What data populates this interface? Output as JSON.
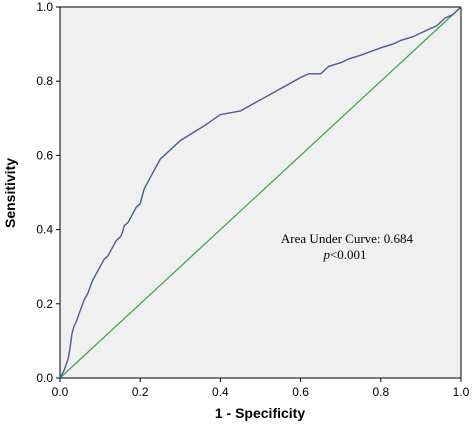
{
  "chart_data": {
    "type": "line",
    "title": "",
    "xlabel": "1 - Specificity",
    "ylabel": "Sensitivity",
    "xlim": [
      0.0,
      1.0
    ],
    "ylim": [
      0.0,
      1.0
    ],
    "x_ticks": [
      "0.0",
      "0.2",
      "0.4",
      "0.6",
      "0.8",
      "1.0"
    ],
    "y_ticks": [
      "0.0",
      "0.2",
      "0.4",
      "0.6",
      "0.8",
      "1.0"
    ],
    "grid": false,
    "plot_background": "#f0f0f0",
    "series": [
      {
        "color": "#4a5a9c",
        "x": [
          0.0,
          0.01,
          0.02,
          0.025,
          0.03,
          0.035,
          0.04,
          0.05,
          0.06,
          0.07,
          0.08,
          0.09,
          0.095,
          0.1,
          0.11,
          0.12,
          0.13,
          0.14,
          0.15,
          0.155,
          0.16,
          0.17,
          0.18,
          0.19,
          0.2,
          0.205,
          0.21,
          0.22,
          0.23,
          0.24,
          0.25,
          0.26,
          0.28,
          0.3,
          0.33,
          0.36,
          0.4,
          0.45,
          0.5,
          0.55,
          0.6,
          0.62,
          0.65,
          0.67,
          0.7,
          0.72,
          0.75,
          0.8,
          0.83,
          0.85,
          0.88,
          0.9,
          0.92,
          0.94,
          0.96,
          0.98,
          1.0
        ],
        "y": [
          0.0,
          0.02,
          0.05,
          0.08,
          0.12,
          0.14,
          0.15,
          0.18,
          0.21,
          0.23,
          0.26,
          0.28,
          0.29,
          0.3,
          0.32,
          0.33,
          0.35,
          0.37,
          0.38,
          0.39,
          0.41,
          0.42,
          0.44,
          0.46,
          0.47,
          0.49,
          0.51,
          0.53,
          0.55,
          0.57,
          0.59,
          0.6,
          0.62,
          0.64,
          0.66,
          0.68,
          0.71,
          0.72,
          0.75,
          0.78,
          0.81,
          0.82,
          0.82,
          0.84,
          0.85,
          0.86,
          0.87,
          0.89,
          0.9,
          0.91,
          0.92,
          0.93,
          0.94,
          0.95,
          0.97,
          0.98,
          1.0
        ]
      },
      {
        "color": "#2eab3c",
        "x": [
          0.0,
          1.0
        ],
        "y": [
          0.0,
          1.0
        ]
      }
    ],
    "annotations": {
      "auc": "Area Under Curve: 0.684",
      "p_letter": "p",
      "p_rest": "<0.001"
    }
  }
}
